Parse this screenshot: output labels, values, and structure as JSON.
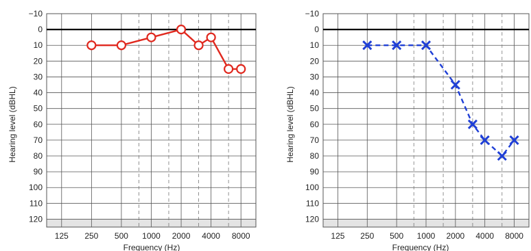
{
  "chart_data": [
    {
      "type": "line",
      "xlabel": "Frequency (Hz)",
      "ylabel": "Hearing level (dBHL)",
      "x_ticks": [
        "125",
        "250",
        "500",
        "1000",
        "2000",
        "4000",
        "8000"
      ],
      "y_ticks": [
        "−10",
        "0",
        "10",
        "20",
        "30",
        "40",
        "50",
        "60",
        "70",
        "80",
        "90",
        "100",
        "110",
        "120"
      ],
      "ylim": [
        -10,
        125
      ],
      "y_inverted": true,
      "grid": true,
      "marker": "circle",
      "line_style": "solid",
      "color": "#e0281e",
      "series": [
        {
          "x": [
            250,
            500,
            1000,
            2000,
            3000,
            4000,
            6000,
            8000
          ],
          "y": [
            10,
            10,
            5,
            0,
            10,
            5,
            25,
            25
          ]
        }
      ]
    },
    {
      "type": "line",
      "xlabel": "Frequency (Hz)",
      "ylabel": "Hearing level (dBHL)",
      "x_ticks": [
        "125",
        "250",
        "500",
        "1000",
        "2000",
        "4000",
        "8000"
      ],
      "y_ticks": [
        "−10",
        "0",
        "10",
        "20",
        "30",
        "40",
        "50",
        "60",
        "70",
        "80",
        "90",
        "100",
        "110",
        "120"
      ],
      "ylim": [
        -10,
        125
      ],
      "y_inverted": true,
      "grid": true,
      "marker": "x",
      "line_style": "dashed",
      "color": "#1f3fd6",
      "series": [
        {
          "x": [
            250,
            500,
            1000,
            2000,
            3000,
            4000,
            6000,
            8000
          ],
          "y": [
            10,
            10,
            10,
            35,
            60,
            70,
            80,
            70
          ]
        }
      ]
    }
  ]
}
